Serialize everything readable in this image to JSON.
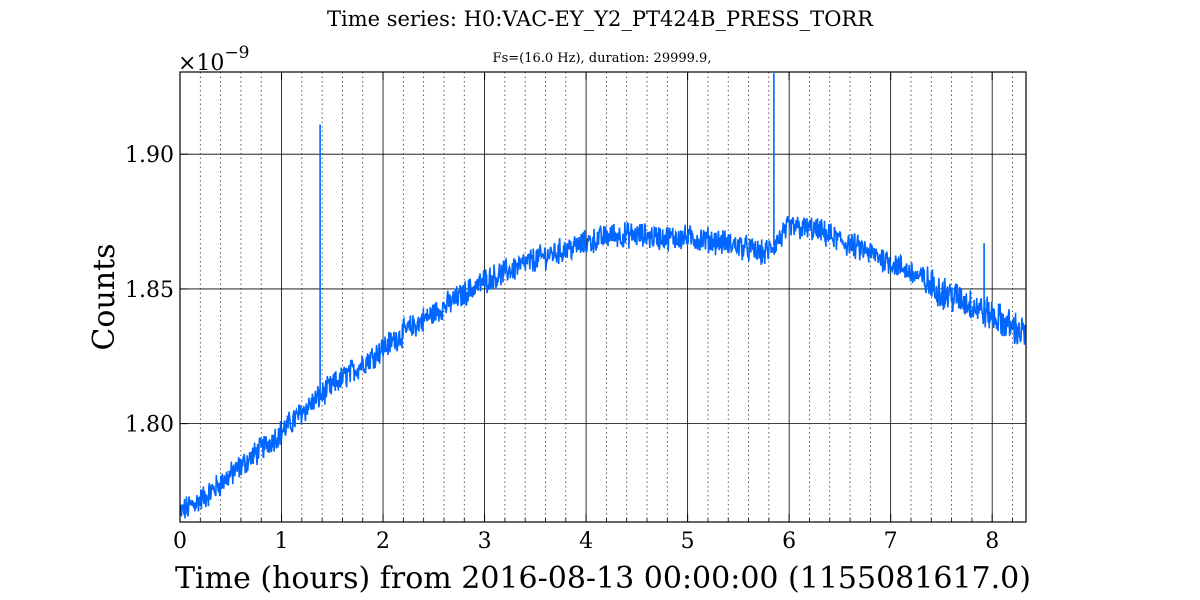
{
  "chart_data": {
    "type": "line",
    "title": "Time series: H0:VAC-EY_Y2_PT424B_PRESS_TORR",
    "subtitle": "Fs=(16.0 Hz), duration: 29999.9,",
    "xlabel": "Time (hours) from 2016-08-13 00:00:00 (1155081617.0)",
    "ylabel": "Counts",
    "y_multiplier_label": "×10",
    "y_multiplier_exponent": "−9",
    "xlim": [
      0,
      8.333
    ],
    "ylim": [
      1.7635,
      1.9305
    ],
    "x_ticks": [
      0,
      1,
      2,
      3,
      4,
      5,
      6,
      7,
      8
    ],
    "x_tick_labels": [
      "0",
      "1",
      "2",
      "3",
      "4",
      "5",
      "6",
      "7",
      "8"
    ],
    "y_ticks": [
      1.8,
      1.85,
      1.9
    ],
    "y_tick_labels": [
      "1.80",
      "1.85",
      "1.90"
    ],
    "grid": true,
    "line_color": "#0066ff",
    "series": [
      {
        "name": "",
        "color": "#0066ff",
        "x": [
          0,
          0.25,
          0.5,
          0.75,
          1.0,
          1.25,
          1.5,
          1.75,
          2.0,
          2.25,
          2.5,
          2.75,
          3.0,
          3.25,
          3.5,
          3.75,
          4.0,
          4.25,
          4.5,
          4.75,
          5.0,
          5.25,
          5.5,
          5.75,
          5.85,
          6.0,
          6.25,
          6.5,
          6.75,
          7.0,
          7.25,
          7.5,
          7.75,
          8.0,
          8.333
        ],
        "y": [
          1.767,
          1.773,
          1.781,
          1.789,
          1.797,
          1.806,
          1.814,
          1.821,
          1.828,
          1.835,
          1.841,
          1.847,
          1.853,
          1.857,
          1.861,
          1.864,
          1.867,
          1.87,
          1.87,
          1.869,
          1.869,
          1.868,
          1.866,
          1.863,
          1.866,
          1.873,
          1.872,
          1.868,
          1.864,
          1.86,
          1.855,
          1.849,
          1.845,
          1.84,
          1.833
        ],
        "spikes": [
          {
            "x": 1.38,
            "y": 1.911
          },
          {
            "x": 5.85,
            "y": 1.93
          },
          {
            "x": 7.92,
            "y": 1.867
          }
        ]
      }
    ]
  }
}
